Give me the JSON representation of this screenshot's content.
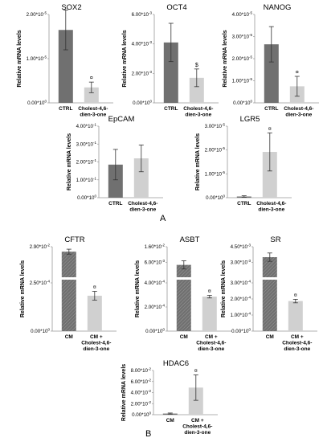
{
  "figure": {
    "panel_labels": [
      "A",
      "B"
    ]
  },
  "colors": {
    "ctrl_bar": "#707070",
    "treated_bar": "#d0d0d0",
    "axis": "#999999",
    "text": "#000000",
    "break_band": "#ffffff"
  },
  "chart_data": [
    {
      "type": "bar",
      "title": "SOX2",
      "ylabel": "Relative mRNA levels",
      "ticks": [
        "0.00*10^0",
        "1.00*10^-5",
        "2.00*10^-5"
      ],
      "ylim": [
        0,
        2e-05
      ],
      "categories": [
        "CTRL",
        "Cholest-4,6-dien-3-one"
      ],
      "values": [
        1.65e-05,
        3.5e-06
      ],
      "errors": [
        4.5e-06,
        1.2e-06
      ],
      "markers": [
        "",
        "¤"
      ]
    },
    {
      "type": "bar",
      "title": "OCT4",
      "ylabel": "Relative mRNA levels",
      "ticks": [
        "0.00*10^0",
        "2.00*10^-3",
        "4.00*10^-3",
        "6.00*10^-3"
      ],
      "ylim": [
        0,
        0.006
      ],
      "categories": [
        "CTRL",
        "Cholest-4,6-dien-3-one"
      ],
      "values": [
        0.0041,
        0.0017
      ],
      "errors": [
        0.0013,
        0.0006
      ],
      "markers": [
        "",
        "$"
      ]
    },
    {
      "type": "bar",
      "title": "NANOG",
      "ylabel": "Relative mRNA levels",
      "ticks": [
        "0.00*10^0",
        "1.00*10^-5",
        "2.00*10^-5",
        "3.00*10^-5",
        "4.00*10^-5"
      ],
      "ylim": [
        0,
        4e-05
      ],
      "categories": [
        "CTRL",
        "Cholest-4,6-dien-3-one"
      ],
      "values": [
        2.65e-05,
        7.5e-06
      ],
      "errors": [
        8e-06,
        4.5e-06
      ],
      "markers": [
        "",
        "¤"
      ]
    },
    {
      "type": "bar",
      "title": "EpCAM",
      "ylabel": "Relative mRNA levels",
      "ticks": [
        "0.00*10^0",
        "1.00*10^-1",
        "2.00*10^-1",
        "3.00*10^-1",
        "4.00*10^-1"
      ],
      "ylim": [
        0,
        0.4
      ],
      "categories": [
        "CTRL",
        "Cholest-4,6-dien-3-one"
      ],
      "values": [
        0.185,
        0.22
      ],
      "errors": [
        0.085,
        0.075
      ],
      "markers": [
        "",
        ""
      ]
    },
    {
      "type": "bar",
      "title": "LGR5",
      "ylabel": "Relative mRNA levels",
      "ticks": [
        "0.00*10^0",
        "1.00*10^-5",
        "2.00*10^-5",
        "3.00*10^-5"
      ],
      "ylim": [
        0,
        3e-05
      ],
      "categories": [
        "CTRL",
        "Cholest-4,6-dien-3-one"
      ],
      "values": [
        5e-07,
        1.92e-05
      ],
      "errors": [
        3e-07,
        8e-06
      ],
      "markers": [
        "",
        "¤"
      ]
    },
    {
      "type": "bar",
      "title": "CFTR",
      "ylabel": "Relative mRNA levels",
      "broken_axis": true,
      "upper_ticks": [
        "2.90*10^-2"
      ],
      "upper_range": [
        0.01,
        0.029
      ],
      "lower_ticks": [
        "0.00*10^0",
        "2.50*10^-4"
      ],
      "lower_range": [
        0,
        0.0006
      ],
      "categories": [
        "CM",
        "CM + Cholest-4,6-dien-3-one"
      ],
      "values": [
        0.026,
        0.0004
      ],
      "errors": [
        0.0015,
        5e-05
      ],
      "markers": [
        "",
        "¤"
      ]
    },
    {
      "type": "bar",
      "title": "ASBT",
      "ylabel": "Relative mRNA levels",
      "broken_axis": true,
      "upper_ticks": [
        "6.00*10^-3",
        "1.60*10^-2"
      ],
      "upper_range": [
        0.006,
        0.016
      ],
      "lower_ticks": [
        "0.00*10^0",
        "2.00*10^-4",
        "4.00*10^-4"
      ],
      "lower_range": [
        0,
        0.0004
      ],
      "categories": [
        "CM",
        "CM + Cholest-4,6-dien-3-one"
      ],
      "values": [
        0.0102,
        0.00026
      ],
      "errors": [
        0.0013,
        1e-05
      ],
      "markers": [
        "",
        "¤"
      ]
    },
    {
      "type": "bar",
      "title": "SR",
      "ylabel": "Relative mRNA levels",
      "broken_axis": true,
      "upper_ticks": [
        "3.00*10^-3",
        "4.50*10^-3"
      ],
      "upper_range": [
        0.003,
        0.0045
      ],
      "lower_ticks": [
        "0.00*10^0",
        "1.00*10^-4",
        "2.00*10^-4",
        "3.00*10^-4"
      ],
      "lower_range": [
        0,
        0.0003
      ],
      "categories": [
        "CM",
        "CM + Cholest-4,6-dien-3-one"
      ],
      "values": [
        0.004,
        0.00017
      ],
      "errors": [
        0.0002,
        1e-05
      ],
      "markers": [
        "",
        "¤"
      ]
    },
    {
      "type": "bar",
      "title": "HDAC6",
      "ylabel": "Relative mRNA levels",
      "ticks": [
        "0.00*10^0",
        "2.00*10^-2",
        "4.00*10^-2",
        "6.00*10^-2",
        "8.00*10^-2"
      ],
      "ylim": [
        0,
        0.08
      ],
      "categories": [
        "CM",
        "CM + Cholest-4,6-dien-3-one"
      ],
      "values": [
        0.002,
        0.049
      ],
      "errors": [
        0.001,
        0.023
      ],
      "markers": [
        "",
        "¤"
      ]
    }
  ]
}
